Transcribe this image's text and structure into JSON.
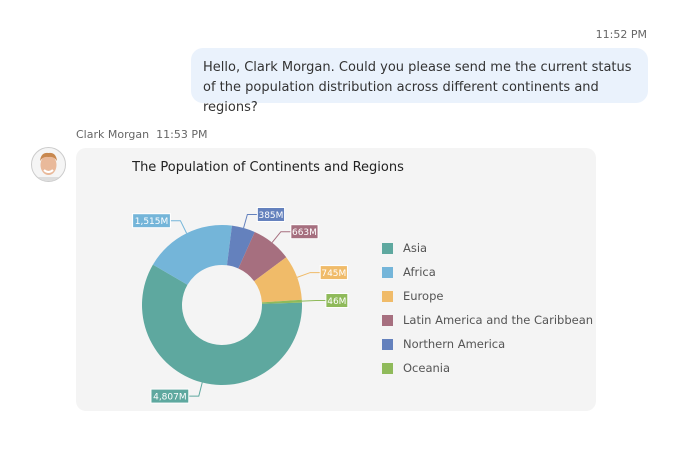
{
  "messages": [
    {
      "time": "11:52 PM",
      "text": "Hello, Clark Morgan. Could you please send me the current status of the population distribution across different continents and regions?"
    },
    {
      "sender": "Clark Morgan",
      "time": "11:53 PM"
    }
  ],
  "chart_data": {
    "type": "pie",
    "donut": true,
    "title": "The Population of Continents and Regions",
    "legend_position": "right",
    "categories": [
      "Asia",
      "Africa",
      "Northern America",
      "Latin America and the Caribbean",
      "Europe",
      "Oceania"
    ],
    "values": [
      4807,
      1515,
      385,
      663,
      745,
      46
    ],
    "labels": [
      "4,807M",
      "1,515M",
      "385M",
      "663M",
      "745M",
      "46M"
    ],
    "colors": [
      "#5ea89f",
      "#74b5d9",
      "#6481bd",
      "#a66f7f",
      "#f0bb69",
      "#8fba5a"
    ],
    "legend": [
      {
        "name": "Asia",
        "color": "#5ea89f"
      },
      {
        "name": "Africa",
        "color": "#74b5d9"
      },
      {
        "name": "Europe",
        "color": "#f0bb69"
      },
      {
        "name": "Latin America and the Caribbean",
        "color": "#a66f7f"
      },
      {
        "name": "Northern America",
        "color": "#6481bd"
      },
      {
        "name": "Oceania",
        "color": "#8fba5a"
      }
    ]
  }
}
